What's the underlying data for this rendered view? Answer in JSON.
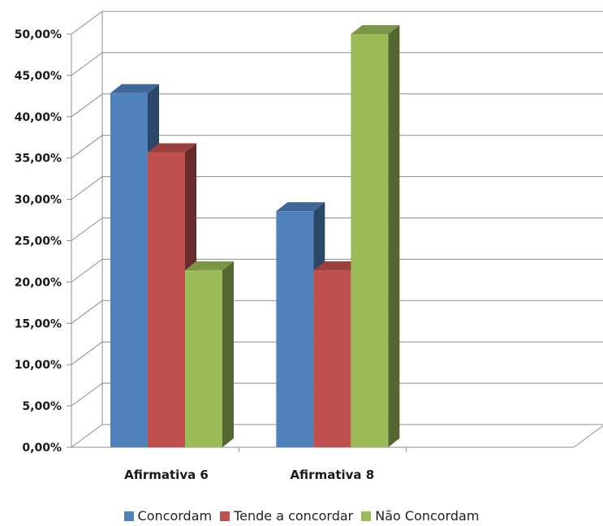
{
  "chart_data": {
    "type": "bar",
    "style": "3d-clustered-column",
    "categories": [
      "Afirmativa 6",
      "Afirmativa 8"
    ],
    "series": [
      {
        "name": "Concordam",
        "color": "#4f81bd",
        "values": [
          42.86,
          28.57
        ]
      },
      {
        "name": "Tende a concordar",
        "color": "#c0504d",
        "values": [
          35.71,
          21.43
        ]
      },
      {
        "name": "Não Concordam",
        "color": "#9bbb59",
        "values": [
          21.43,
          50.0
        ]
      }
    ],
    "y_ticks": [
      "0,00%",
      "5,00%",
      "10,00%",
      "15,00%",
      "20,00%",
      "25,00%",
      "30,00%",
      "35,00%",
      "40,00%",
      "45,00%",
      "50,00%"
    ],
    "ylim": [
      0,
      50
    ],
    "grid": true,
    "legend_position": "bottom"
  }
}
